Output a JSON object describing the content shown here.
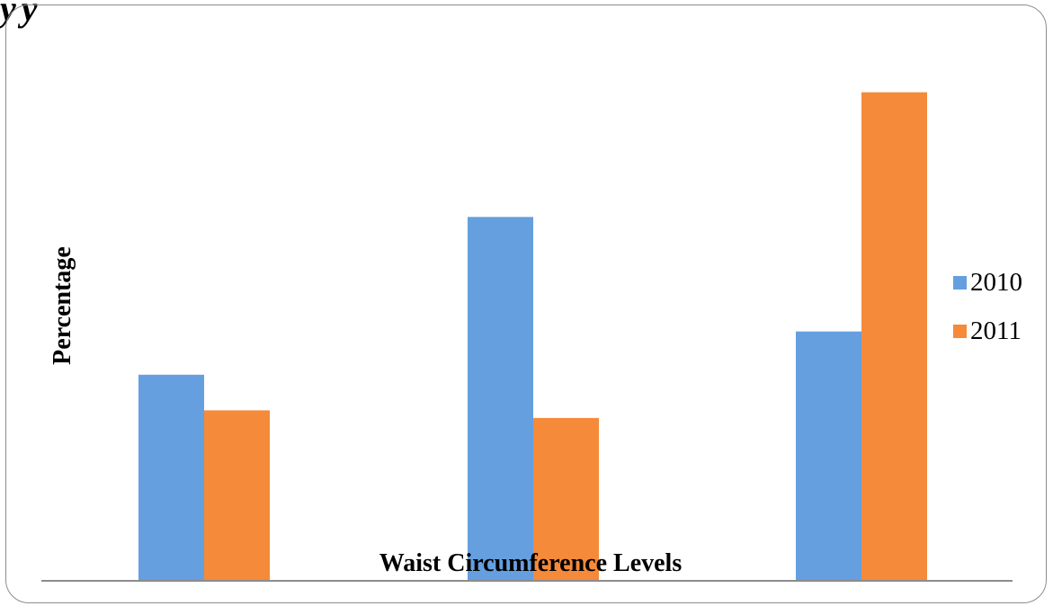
{
  "slide": {
    "corner_text": "y y"
  },
  "colors": {
    "series_2010": "#659fdf",
    "series_2011": "#f58a3a",
    "axis": "#8c8c8c"
  },
  "chart_data": {
    "type": "bar",
    "title": "",
    "xlabel": "Waist Circumference Levels",
    "ylabel": "Percentage",
    "categories": [
      "",
      "",
      ""
    ],
    "ylim": [
      0,
      100
    ],
    "grid": false,
    "legend_position": "right",
    "series": [
      {
        "name": "2010",
        "values": [
          40.5,
          71.5,
          49
        ]
      },
      {
        "name": "2011",
        "values": [
          33.5,
          32,
          96
        ]
      }
    ]
  }
}
